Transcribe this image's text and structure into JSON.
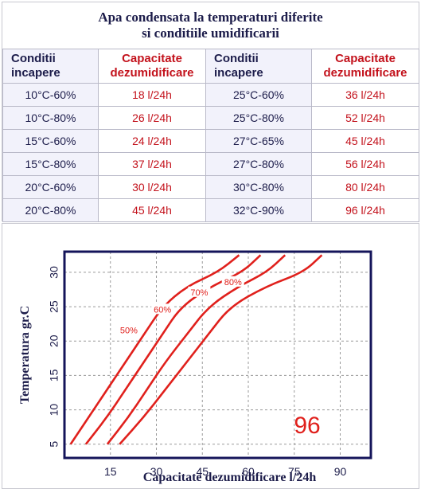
{
  "title": {
    "line1": "Apa condensata la temperaturi diferite",
    "line2": "si conditiile umidificarii"
  },
  "table": {
    "headers": [
      [
        "Conditii",
        "incapere"
      ],
      [
        "Capacitate",
        "dezumidificare"
      ],
      [
        "Conditii",
        "incapere"
      ],
      [
        "Capacitate",
        "dezumidificare"
      ]
    ],
    "rows": [
      [
        "10°C-60%",
        "18 l/24h",
        "25°C-60%",
        "36 l/24h"
      ],
      [
        "10°C-80%",
        "26 l/24h",
        "25°C-80%",
        "52 l/24h"
      ],
      [
        "15°C-60%",
        "24 l/24h",
        "27°C-65%",
        "45 l/24h"
      ],
      [
        "15°C-80%",
        "37 l/24h",
        "27°C-80%",
        "56 l/24h"
      ],
      [
        "20°C-60%",
        "30 l/24h",
        "30°C-80%",
        "80 l/24h"
      ],
      [
        "20°C-80%",
        "45 l/24h",
        "32°C-90%",
        "96 l/24h"
      ]
    ]
  },
  "colors": {
    "title": "#1c1c4a",
    "condition_text": "#1c1c4a",
    "capacity_text": "#c3121c",
    "condition_bg": "#f2f2fb",
    "curve": "#e0201c",
    "grid": "#9a9a9a",
    "frame": "#14145a"
  },
  "chart_data": {
    "type": "line",
    "xlabel": "Capacitate dezumidificare l/24h",
    "ylabel": "Temperatura gr.C",
    "xlim": [
      0,
      100
    ],
    "ylim": [
      3,
      33
    ],
    "xticks": [
      15,
      30,
      45,
      60,
      75,
      90
    ],
    "yticks": [
      5,
      10,
      15,
      20,
      25,
      30
    ],
    "grid": true,
    "highlight_value": "96",
    "series": [
      {
        "name": "50%",
        "points": [
          [
            2,
            5
          ],
          [
            8,
            9
          ],
          [
            14,
            13
          ],
          [
            20,
            17
          ],
          [
            26,
            21
          ],
          [
            32,
            25
          ],
          [
            40,
            28
          ],
          [
            50,
            30
          ],
          [
            57,
            32.5
          ]
        ]
      },
      {
        "name": "60%",
        "points": [
          [
            7,
            5
          ],
          [
            14,
            9
          ],
          [
            20,
            13
          ],
          [
            26,
            17
          ],
          [
            32,
            21
          ],
          [
            38,
            25
          ],
          [
            48,
            28
          ],
          [
            58,
            30
          ],
          [
            64,
            32.5
          ]
        ]
      },
      {
        "name": "70%",
        "points": [
          [
            14,
            5
          ],
          [
            21,
            9
          ],
          [
            27,
            13
          ],
          [
            33,
            17
          ],
          [
            40,
            21
          ],
          [
            47,
            25
          ],
          [
            57,
            28
          ],
          [
            66,
            30
          ],
          [
            72,
            32.5
          ]
        ]
      },
      {
        "name": "80%",
        "points": [
          [
            18,
            5
          ],
          [
            26,
            9
          ],
          [
            33,
            13
          ],
          [
            40,
            17
          ],
          [
            47,
            21
          ],
          [
            54,
            25
          ],
          [
            66,
            28
          ],
          [
            78,
            30
          ],
          [
            84,
            32.5
          ]
        ]
      }
    ]
  }
}
